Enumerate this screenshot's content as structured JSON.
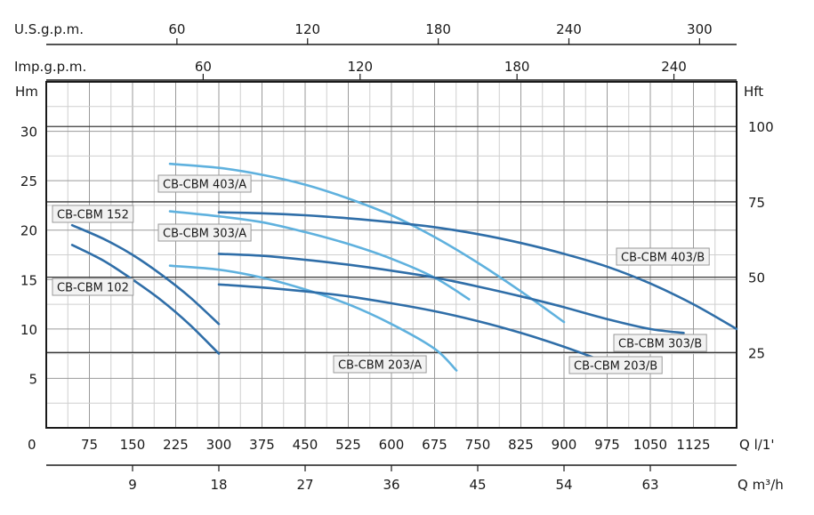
{
  "chart_data": {
    "type": "line",
    "axis_labels": {
      "top1_unit": "U.S.g.p.m.",
      "top2_unit": "Imp.g.p.m.",
      "left_unit": "Hm",
      "right_unit": "Hft",
      "bottom1_unit": "Q l/1'",
      "bottom2_unit": "Q m³/h",
      "origin": "0"
    },
    "x_ticks_lpm": [
      "75",
      "150",
      "225",
      "300",
      "375",
      "450",
      "525",
      "600",
      "675",
      "750",
      "825",
      "900",
      "975",
      "1050",
      "1125"
    ],
    "x_ticks_m3h": [
      "9",
      "18",
      "27",
      "36",
      "45",
      "54",
      "63"
    ],
    "top_ticks_usgpm": [
      "60",
      "120",
      "180",
      "240",
      "300"
    ],
    "top_ticks_impgpm": [
      "60",
      "120",
      "180",
      "240"
    ],
    "y_ticks_m": [
      "5",
      "10",
      "15",
      "20",
      "25",
      "30"
    ],
    "y_ticks_ft": [
      "25",
      "50",
      "75",
      "100"
    ],
    "xlim": [
      0,
      1200
    ],
    "ylim": [
      0,
      35
    ],
    "grid": true,
    "series": [
      {
        "name": "CB-CBM 152",
        "color": "#2f6ea8",
        "x": [
          45,
          100,
          150,
          200,
          250,
          300
        ],
        "y": [
          20.5,
          19.1,
          17.5,
          15.5,
          13.2,
          10.5
        ]
      },
      {
        "name": "CB-CBM 102",
        "color": "#2f6ea8",
        "x": [
          45,
          100,
          150,
          200,
          250,
          300
        ],
        "y": [
          18.5,
          16.9,
          15.0,
          12.9,
          10.4,
          7.5
        ]
      },
      {
        "name": "CB-CBM 403/A",
        "color": "#5fb1de",
        "x": [
          215,
          300,
          375,
          450,
          525,
          600,
          675,
          750,
          825,
          900
        ],
        "y": [
          26.7,
          26.3,
          25.6,
          24.6,
          23.2,
          21.5,
          19.3,
          16.7,
          13.8,
          10.7
        ]
      },
      {
        "name": "CB-CBM 303/A",
        "color": "#5fb1de",
        "x": [
          215,
          300,
          375,
          450,
          525,
          600,
          675,
          735
        ],
        "y": [
          21.9,
          21.4,
          20.8,
          19.8,
          18.6,
          17.1,
          15.2,
          13.0
        ]
      },
      {
        "name": "CB-CBM 203/A",
        "color": "#5fb1de",
        "x": [
          215,
          300,
          375,
          450,
          525,
          600,
          675,
          713
        ],
        "y": [
          16.4,
          16.0,
          15.2,
          14.0,
          12.5,
          10.5,
          8.0,
          5.8
        ]
      },
      {
        "name": "CB-CBM 403/B",
        "color": "#2f6ea8",
        "x": [
          300,
          375,
          450,
          525,
          600,
          675,
          750,
          825,
          900,
          975,
          1050,
          1125,
          1200
        ],
        "y": [
          21.8,
          21.7,
          21.5,
          21.2,
          20.8,
          20.3,
          19.6,
          18.7,
          17.6,
          16.3,
          14.6,
          12.5,
          10.0
        ]
      },
      {
        "name": "CB-CBM 303/B",
        "color": "#2f6ea8",
        "x": [
          300,
          375,
          450,
          525,
          600,
          675,
          750,
          825,
          900,
          975,
          1050,
          1108
        ],
        "y": [
          17.6,
          17.4,
          17.0,
          16.5,
          15.9,
          15.2,
          14.3,
          13.3,
          12.2,
          11.0,
          10.0,
          9.6
        ]
      },
      {
        "name": "CB-CBM 203/B",
        "color": "#2f6ea8",
        "x": [
          300,
          375,
          450,
          525,
          600,
          675,
          750,
          825,
          900,
          975
        ],
        "y": [
          14.5,
          14.2,
          13.8,
          13.3,
          12.6,
          11.8,
          10.8,
          9.6,
          8.2,
          6.6
        ]
      }
    ]
  }
}
